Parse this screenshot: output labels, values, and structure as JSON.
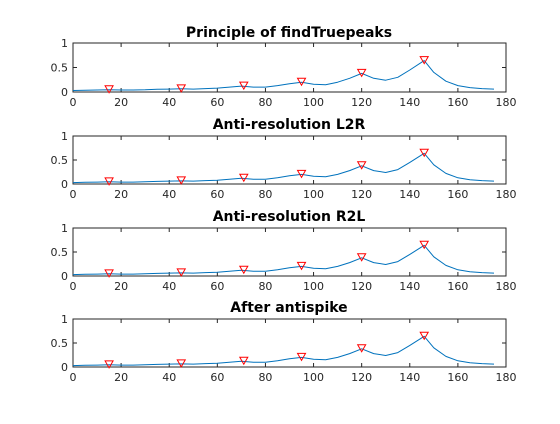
{
  "colors": {
    "background": "#ffffff",
    "line": "#0072bd",
    "marker_stroke": "#ff0000",
    "axis": "#262626"
  },
  "chart_data": [
    {
      "type": "line",
      "title": "Principle of findTruepeaks",
      "xlim": [
        0,
        180
      ],
      "ylim": [
        0,
        1
      ],
      "xticks": [
        0,
        20,
        40,
        60,
        80,
        100,
        120,
        140,
        160,
        180
      ],
      "yticks": [
        0,
        0.5,
        1
      ],
      "xticklabels": [
        "0",
        "20",
        "40",
        "60",
        "80",
        "100",
        "120",
        "140",
        "160",
        "180"
      ],
      "yticklabels": [
        "0",
        "0.5",
        "1"
      ],
      "grid": false,
      "series": [
        {
          "marker": "none",
          "x": [
            0,
            5,
            10,
            15,
            20,
            25,
            30,
            35,
            40,
            45,
            50,
            55,
            60,
            65,
            70,
            75,
            80,
            85,
            90,
            95,
            100,
            105,
            110,
            115,
            120,
            125,
            130,
            135,
            140,
            146,
            150,
            155,
            160,
            165,
            170,
            175
          ],
          "y": [
            0.03,
            0.035,
            0.04,
            0.045,
            0.04,
            0.04,
            0.045,
            0.055,
            0.06,
            0.065,
            0.06,
            0.07,
            0.08,
            0.1,
            0.12,
            0.1,
            0.1,
            0.13,
            0.17,
            0.2,
            0.16,
            0.15,
            0.2,
            0.28,
            0.38,
            0.28,
            0.24,
            0.3,
            0.45,
            0.64,
            0.4,
            0.22,
            0.13,
            0.09,
            0.07,
            0.06
          ]
        },
        {
          "marker": "triangle-down",
          "x": [
            15,
            45,
            71,
            95,
            120,
            146
          ],
          "y": [
            0.045,
            0.065,
            0.12,
            0.2,
            0.38,
            0.64
          ]
        }
      ]
    },
    {
      "type": "line",
      "title": "Anti-resolution L2R",
      "xlim": [
        0,
        180
      ],
      "ylim": [
        0,
        1
      ],
      "xticks": [
        0,
        20,
        40,
        60,
        80,
        100,
        120,
        140,
        160,
        180
      ],
      "yticks": [
        0,
        0.5,
        1
      ],
      "xticklabels": [
        "0",
        "20",
        "40",
        "60",
        "80",
        "100",
        "120",
        "140",
        "160",
        "180"
      ],
      "yticklabels": [
        "0",
        "0.5",
        "1"
      ],
      "grid": false,
      "series": [
        {
          "marker": "none",
          "x": [
            0,
            5,
            10,
            15,
            20,
            25,
            30,
            35,
            40,
            45,
            50,
            55,
            60,
            65,
            70,
            75,
            80,
            85,
            90,
            95,
            100,
            105,
            110,
            115,
            120,
            125,
            130,
            135,
            140,
            146,
            150,
            155,
            160,
            165,
            170,
            175
          ],
          "y": [
            0.03,
            0.035,
            0.04,
            0.045,
            0.04,
            0.04,
            0.045,
            0.055,
            0.06,
            0.065,
            0.06,
            0.07,
            0.08,
            0.1,
            0.12,
            0.1,
            0.1,
            0.13,
            0.17,
            0.2,
            0.16,
            0.15,
            0.2,
            0.28,
            0.38,
            0.28,
            0.24,
            0.3,
            0.45,
            0.64,
            0.4,
            0.22,
            0.13,
            0.09,
            0.07,
            0.06
          ]
        },
        {
          "marker": "triangle-down",
          "x": [
            15,
            45,
            71,
            95,
            120,
            146
          ],
          "y": [
            0.045,
            0.065,
            0.12,
            0.2,
            0.38,
            0.64
          ]
        }
      ]
    },
    {
      "type": "line",
      "title": "Anti-resolution R2L",
      "xlim": [
        0,
        180
      ],
      "ylim": [
        0,
        1
      ],
      "xticks": [
        0,
        20,
        40,
        60,
        80,
        100,
        120,
        140,
        160,
        180
      ],
      "yticks": [
        0,
        0.5,
        1
      ],
      "xticklabels": [
        "0",
        "20",
        "40",
        "60",
        "80",
        "100",
        "120",
        "140",
        "160",
        "180"
      ],
      "yticklabels": [
        "0",
        "0.5",
        "1"
      ],
      "grid": false,
      "series": [
        {
          "marker": "none",
          "x": [
            0,
            5,
            10,
            15,
            20,
            25,
            30,
            35,
            40,
            45,
            50,
            55,
            60,
            65,
            70,
            75,
            80,
            85,
            90,
            95,
            100,
            105,
            110,
            115,
            120,
            125,
            130,
            135,
            140,
            146,
            150,
            155,
            160,
            165,
            170,
            175
          ],
          "y": [
            0.03,
            0.035,
            0.04,
            0.045,
            0.04,
            0.04,
            0.045,
            0.055,
            0.06,
            0.065,
            0.06,
            0.07,
            0.08,
            0.1,
            0.12,
            0.1,
            0.1,
            0.13,
            0.17,
            0.2,
            0.16,
            0.15,
            0.2,
            0.28,
            0.38,
            0.28,
            0.24,
            0.3,
            0.45,
            0.64,
            0.4,
            0.22,
            0.13,
            0.09,
            0.07,
            0.06
          ]
        },
        {
          "marker": "triangle-down",
          "x": [
            15,
            45,
            71,
            95,
            120,
            146
          ],
          "y": [
            0.045,
            0.065,
            0.12,
            0.2,
            0.38,
            0.64
          ]
        }
      ]
    },
    {
      "type": "line",
      "title": "After antispike",
      "xlim": [
        0,
        180
      ],
      "ylim": [
        0,
        1
      ],
      "xticks": [
        0,
        20,
        40,
        60,
        80,
        100,
        120,
        140,
        160,
        180
      ],
      "yticks": [
        0,
        0.5,
        1
      ],
      "xticklabels": [
        "0",
        "20",
        "40",
        "60",
        "80",
        "100",
        "120",
        "140",
        "160",
        "180"
      ],
      "yticklabels": [
        "0",
        "0.5",
        "1"
      ],
      "grid": false,
      "series": [
        {
          "marker": "none",
          "x": [
            0,
            5,
            10,
            15,
            20,
            25,
            30,
            35,
            40,
            45,
            50,
            55,
            60,
            65,
            70,
            75,
            80,
            85,
            90,
            95,
            100,
            105,
            110,
            115,
            120,
            125,
            130,
            135,
            140,
            146,
            150,
            155,
            160,
            165,
            170,
            175
          ],
          "y": [
            0.03,
            0.035,
            0.04,
            0.045,
            0.04,
            0.04,
            0.045,
            0.055,
            0.06,
            0.065,
            0.06,
            0.07,
            0.08,
            0.1,
            0.12,
            0.1,
            0.1,
            0.13,
            0.17,
            0.2,
            0.16,
            0.15,
            0.2,
            0.28,
            0.38,
            0.28,
            0.24,
            0.3,
            0.45,
            0.64,
            0.4,
            0.22,
            0.13,
            0.09,
            0.07,
            0.06
          ]
        },
        {
          "marker": "triangle-down",
          "x": [
            15,
            45,
            71,
            95,
            120,
            146
          ],
          "y": [
            0.045,
            0.065,
            0.12,
            0.2,
            0.38,
            0.64
          ]
        }
      ]
    }
  ]
}
